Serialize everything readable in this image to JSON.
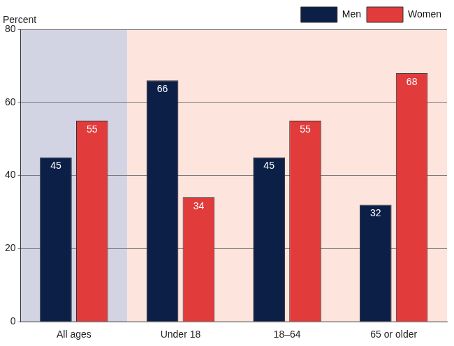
{
  "chart_data": {
    "type": "bar",
    "ylabel": "Percent",
    "categories": [
      "All ages",
      "Under 18",
      "18–64",
      "65 or older"
    ],
    "series": [
      {
        "name": "Men",
        "color": "#0b1f47",
        "values": [
          45,
          66,
          45,
          32
        ]
      },
      {
        "name": "Women",
        "color": "#e23b3b",
        "values": [
          55,
          34,
          55,
          68
        ]
      }
    ],
    "ylim": [
      0,
      80
    ],
    "yticks": [
      0,
      20,
      40,
      60,
      80
    ],
    "grid": true,
    "legend": "top-right",
    "data_labels": true
  }
}
